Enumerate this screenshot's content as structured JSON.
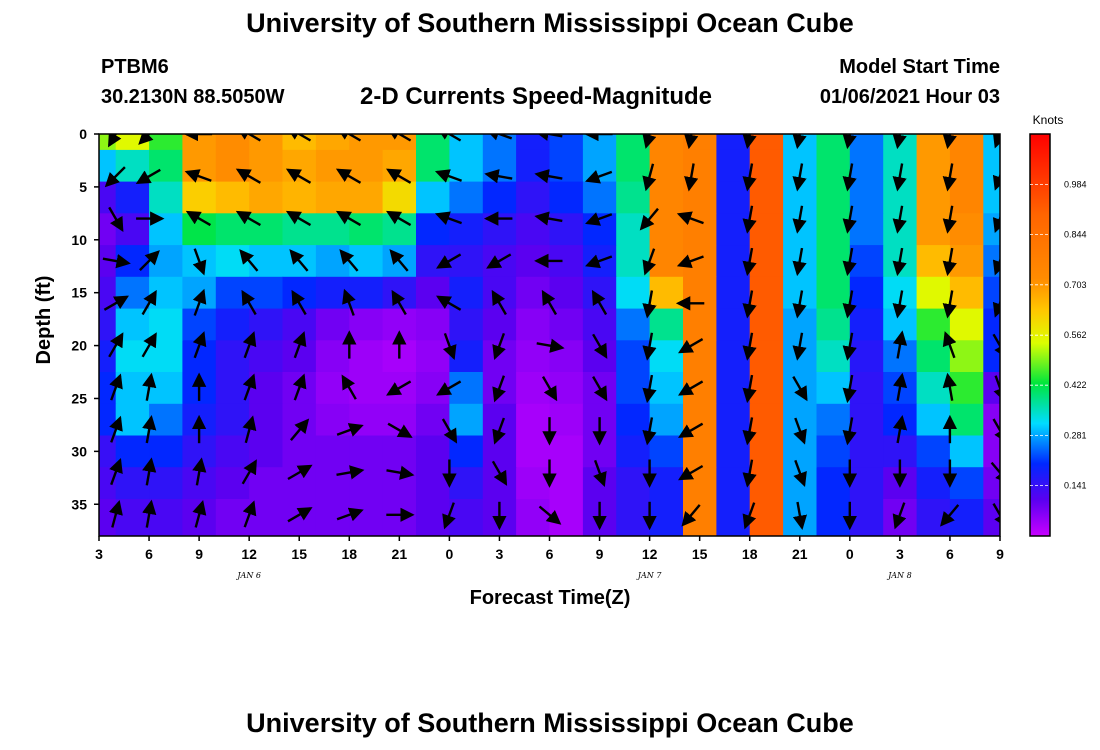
{
  "header": {
    "title": "University of Southern Mississippi Ocean Cube",
    "station_id": "PTBM6",
    "station_coords": "30.2130N 88.5050W",
    "chart_title": "2-D Currents Speed-Magnitude",
    "model_start_label": "Model Start Time",
    "model_start_value": "01/06/2021 Hour 03"
  },
  "footer": {
    "title": "University of Southern Mississippi Ocean Cube"
  },
  "chart_data": {
    "type": "heatmap",
    "title": "2-D Currents Speed-Magnitude",
    "xlabel": "Forecast Time(Z)",
    "ylabel": "Depth (ft)",
    "x_tick_labels": [
      "3",
      "6",
      "9",
      "12",
      "15",
      "18",
      "21",
      "0",
      "3",
      "6",
      "9",
      "12",
      "15",
      "18",
      "21",
      "0",
      "3",
      "6",
      "9"
    ],
    "x_tick_hours": [
      3,
      6,
      9,
      12,
      15,
      18,
      21,
      24,
      27,
      30,
      33,
      36,
      39,
      42,
      45,
      48,
      51,
      54,
      57
    ],
    "date_labels": [
      {
        "text": "JAN 6",
        "hour": 12
      },
      {
        "text": "JAN 7",
        "hour": 36
      },
      {
        "text": "JAN 8",
        "hour": 51
      }
    ],
    "xlim": [
      3,
      57
    ],
    "y_ticks": [
      0,
      5,
      10,
      15,
      20,
      25,
      30,
      35
    ],
    "ylim": [
      38,
      0
    ],
    "depths": [
      0,
      3,
      6,
      9,
      12,
      15,
      18,
      21,
      24,
      27,
      30,
      33,
      36
    ],
    "times": [
      3,
      5,
      7,
      9,
      11,
      13,
      15,
      17,
      19,
      21,
      23,
      25,
      27,
      29,
      31,
      33,
      35,
      37,
      39,
      41,
      43,
      45,
      47,
      49,
      51,
      53,
      55,
      57
    ],
    "speed_knots": [
      [
        0.5,
        0.55,
        0.45,
        0.7,
        0.72,
        0.7,
        0.65,
        0.68,
        0.7,
        0.7,
        0.4,
        0.3,
        0.25,
        0.18,
        0.22,
        0.28,
        0.4,
        0.75,
        0.78,
        0.18,
        0.92,
        0.3,
        0.4,
        0.25,
        0.35,
        0.7,
        0.75,
        0.3
      ],
      [
        0.3,
        0.35,
        0.4,
        0.7,
        0.72,
        0.7,
        0.68,
        0.7,
        0.7,
        0.68,
        0.4,
        0.3,
        0.25,
        0.18,
        0.22,
        0.28,
        0.4,
        0.75,
        0.78,
        0.18,
        0.92,
        0.3,
        0.4,
        0.25,
        0.35,
        0.7,
        0.75,
        0.3
      ],
      [
        0.12,
        0.18,
        0.35,
        0.62,
        0.65,
        0.68,
        0.66,
        0.68,
        0.68,
        0.6,
        0.3,
        0.25,
        0.2,
        0.15,
        0.2,
        0.25,
        0.38,
        0.75,
        0.78,
        0.18,
        0.92,
        0.3,
        0.4,
        0.25,
        0.35,
        0.7,
        0.75,
        0.3
      ],
      [
        0.08,
        0.12,
        0.3,
        0.42,
        0.4,
        0.4,
        0.38,
        0.38,
        0.4,
        0.38,
        0.2,
        0.18,
        0.15,
        0.12,
        0.15,
        0.2,
        0.35,
        0.75,
        0.78,
        0.18,
        0.92,
        0.3,
        0.4,
        0.25,
        0.35,
        0.7,
        0.72,
        0.28
      ],
      [
        0.1,
        0.2,
        0.28,
        0.3,
        0.32,
        0.3,
        0.3,
        0.28,
        0.3,
        0.28,
        0.15,
        0.15,
        0.12,
        0.1,
        0.12,
        0.18,
        0.35,
        0.75,
        0.78,
        0.18,
        0.92,
        0.3,
        0.4,
        0.22,
        0.35,
        0.65,
        0.7,
        0.25
      ],
      [
        0.12,
        0.25,
        0.3,
        0.28,
        0.22,
        0.22,
        0.2,
        0.18,
        0.18,
        0.15,
        0.1,
        0.18,
        0.12,
        0.08,
        0.1,
        0.15,
        0.32,
        0.65,
        0.78,
        0.18,
        0.92,
        0.3,
        0.4,
        0.2,
        0.32,
        0.55,
        0.65,
        0.22
      ],
      [
        0.15,
        0.3,
        0.32,
        0.22,
        0.18,
        0.15,
        0.12,
        0.08,
        0.06,
        0.05,
        0.06,
        0.15,
        0.1,
        0.06,
        0.08,
        0.12,
        0.25,
        0.38,
        0.78,
        0.18,
        0.92,
        0.28,
        0.38,
        0.18,
        0.3,
        0.45,
        0.55,
        0.2
      ],
      [
        0.18,
        0.32,
        0.32,
        0.2,
        0.15,
        0.12,
        0.1,
        0.06,
        0.04,
        0.03,
        0.05,
        0.18,
        0.08,
        0.05,
        0.06,
        0.1,
        0.22,
        0.32,
        0.78,
        0.18,
        0.92,
        0.28,
        0.35,
        0.16,
        0.25,
        0.4,
        0.5,
        0.2
      ],
      [
        0.2,
        0.3,
        0.3,
        0.2,
        0.15,
        0.1,
        0.08,
        0.05,
        0.04,
        0.04,
        0.06,
        0.25,
        0.08,
        0.04,
        0.05,
        0.08,
        0.22,
        0.3,
        0.78,
        0.18,
        0.92,
        0.28,
        0.3,
        0.15,
        0.22,
        0.35,
        0.45,
        0.1
      ],
      [
        0.2,
        0.3,
        0.25,
        0.18,
        0.15,
        0.1,
        0.08,
        0.06,
        0.05,
        0.05,
        0.08,
        0.28,
        0.1,
        0.03,
        0.04,
        0.08,
        0.2,
        0.28,
        0.78,
        0.18,
        0.92,
        0.28,
        0.25,
        0.15,
        0.2,
        0.3,
        0.4,
        0.06
      ],
      [
        0.14,
        0.2,
        0.2,
        0.15,
        0.12,
        0.1,
        0.08,
        0.08,
        0.08,
        0.08,
        0.1,
        0.2,
        0.1,
        0.03,
        0.03,
        0.08,
        0.18,
        0.22,
        0.78,
        0.18,
        0.92,
        0.28,
        0.22,
        0.15,
        0.15,
        0.22,
        0.3,
        0.06
      ],
      [
        0.12,
        0.15,
        0.15,
        0.12,
        0.1,
        0.08,
        0.08,
        0.08,
        0.08,
        0.08,
        0.1,
        0.15,
        0.1,
        0.04,
        0.03,
        0.1,
        0.15,
        0.18,
        0.78,
        0.18,
        0.92,
        0.28,
        0.2,
        0.15,
        0.1,
        0.18,
        0.22,
        0.08
      ],
      [
        0.1,
        0.12,
        0.12,
        0.1,
        0.08,
        0.08,
        0.08,
        0.08,
        0.08,
        0.08,
        0.1,
        0.12,
        0.1,
        0.05,
        0.03,
        0.1,
        0.15,
        0.18,
        0.78,
        0.18,
        0.92,
        0.28,
        0.2,
        0.15,
        0.08,
        0.15,
        0.18,
        0.1
      ]
    ],
    "vectors_times": [
      4,
      6,
      9,
      12,
      15,
      18,
      21,
      24,
      27,
      30,
      33,
      36,
      38.5,
      42,
      45,
      48,
      51,
      54,
      57
    ],
    "vectors_depths": [
      0,
      4,
      8,
      12,
      16,
      20,
      24,
      28,
      32,
      36
    ],
    "vectors_direction_deg": [
      [
        210,
        225,
        270,
        300,
        300,
        300,
        300,
        300,
        290,
        280,
        270,
        195,
        190,
        190,
        190,
        190,
        190,
        190,
        200
      ],
      [
        225,
        240,
        290,
        300,
        300,
        300,
        300,
        290,
        280,
        280,
        250,
        195,
        190,
        190,
        190,
        190,
        190,
        190,
        200
      ],
      [
        150,
        90,
        300,
        300,
        300,
        300,
        300,
        290,
        270,
        280,
        250,
        220,
        290,
        190,
        190,
        190,
        190,
        190,
        200
      ],
      [
        100,
        45,
        160,
        320,
        320,
        320,
        320,
        240,
        240,
        270,
        250,
        200,
        250,
        190,
        190,
        190,
        190,
        190,
        200
      ],
      [
        60,
        30,
        20,
        330,
        330,
        340,
        330,
        300,
        330,
        330,
        330,
        190,
        270,
        190,
        190,
        190,
        190,
        190,
        200
      ],
      [
        30,
        30,
        20,
        20,
        20,
        360,
        0,
        160,
        200,
        100,
        150,
        190,
        240,
        190,
        190,
        190,
        10,
        340,
        150
      ],
      [
        20,
        10,
        0,
        20,
        20,
        330,
        240,
        240,
        200,
        150,
        150,
        190,
        240,
        190,
        150,
        190,
        10,
        350,
        160
      ],
      [
        20,
        10,
        0,
        15,
        40,
        70,
        120,
        150,
        200,
        180,
        180,
        190,
        240,
        190,
        160,
        190,
        10,
        360,
        150
      ],
      [
        20,
        10,
        10,
        30,
        60,
        80,
        100,
        180,
        150,
        180,
        160,
        180,
        240,
        190,
        160,
        180,
        180,
        180,
        140
      ],
      [
        15,
        10,
        15,
        20,
        60,
        70,
        90,
        200,
        180,
        130,
        180,
        180,
        220,
        200,
        170,
        180,
        200,
        220,
        150
      ]
    ],
    "colorbar": {
      "units": "Knots",
      "min": 0,
      "max": 1.125,
      "tick_values": [
        0.141,
        0.281,
        0.422,
        0.562,
        0.703,
        0.844,
        0.984
      ],
      "tick_labels": [
        "0.141",
        "0.281",
        "0.422",
        "0.562",
        "0.703",
        "0.844",
        "0.984"
      ]
    }
  }
}
